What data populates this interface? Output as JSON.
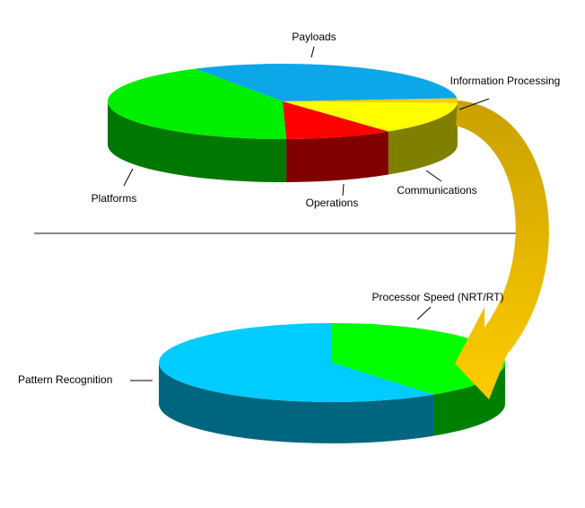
{
  "chart_data": [
    {
      "type": "pie",
      "startangle": 240,
      "categories": [
        "Payloads",
        "Information Processing",
        "Communications",
        "Operations",
        "Platforms"
      ],
      "values": [
        32,
        2,
        14,
        10,
        42
      ],
      "colors": [
        "#0ba7e8",
        "#ffcc00",
        "#ffff00",
        "#ff0000",
        "#00ee00"
      ]
    },
    {
      "type": "pie",
      "startangle": 270,
      "categories": [
        "Processor Speed (NRT/RT)",
        "Pattern Recognition"
      ],
      "values": [
        40,
        60
      ],
      "colors": [
        "#00ff00",
        "#00ccff"
      ]
    }
  ]
}
